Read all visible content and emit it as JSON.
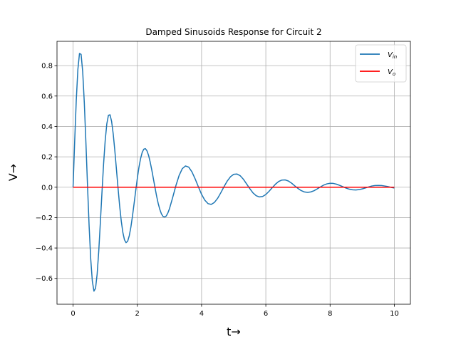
{
  "chart_data": {
    "type": "line",
    "title": "Damped Sinusoids Response for Circuit 2",
    "xlabel": "t→",
    "ylabel": "V→",
    "xlim": [
      -0.5,
      10.5
    ],
    "ylim": [
      -0.77,
      0.96
    ],
    "xticks": [
      0,
      2,
      4,
      6,
      8,
      10
    ],
    "yticks": [
      -0.6,
      -0.4,
      -0.2,
      0.0,
      0.2,
      0.4,
      0.6,
      0.8
    ],
    "xtick_labels": [
      "0",
      "2",
      "4",
      "6",
      "8",
      "10"
    ],
    "ytick_labels": [
      "−0.6",
      "−0.4",
      "−0.2",
      "0.0",
      "0.2",
      "0.4",
      "0.6",
      "0.8"
    ],
    "grid": true,
    "legend_position": "top-right",
    "series": [
      {
        "name": "V_in",
        "legend_main": "V",
        "legend_sub": "in",
        "color": "#1f77b4",
        "x": [
          0,
          0.05,
          0.1,
          0.15,
          0.2,
          0.25,
          0.3,
          0.35,
          0.4,
          0.45,
          0.5,
          0.55,
          0.6,
          0.65,
          0.7,
          0.75,
          0.8,
          0.85,
          0.9,
          0.95,
          1.0,
          1.05,
          1.1,
          1.15,
          1.2,
          1.25,
          1.3,
          1.35,
          1.4,
          1.45,
          1.5,
          1.55,
          1.6,
          1.65,
          1.7,
          1.75,
          1.8,
          1.85,
          1.9,
          1.95,
          2.0,
          2.05,
          2.1,
          2.15,
          2.2,
          2.25,
          2.3,
          2.35,
          2.4,
          2.45,
          2.5,
          2.55,
          2.6,
          2.65,
          2.7,
          2.75,
          2.8,
          2.85,
          2.9,
          2.95,
          3.0,
          3.1,
          3.2,
          3.3,
          3.4,
          3.5,
          3.6,
          3.7,
          3.8,
          3.9,
          4.0,
          4.1,
          4.2,
          4.3,
          4.4,
          4.5,
          4.6,
          4.7,
          4.8,
          4.9,
          5.0,
          5.1,
          5.2,
          5.3,
          5.4,
          5.5,
          5.6,
          5.7,
          5.8,
          5.9,
          6.0,
          6.1,
          6.2,
          6.3,
          6.4,
          6.5,
          6.6,
          6.7,
          6.8,
          6.9,
          7.0,
          7.1,
          7.2,
          7.3,
          7.4,
          7.5,
          7.6,
          7.7,
          7.8,
          7.9,
          8.0,
          8.1,
          8.2,
          8.3,
          8.4,
          8.5,
          8.6,
          8.7,
          8.8,
          8.9,
          9.0,
          9.1,
          9.2,
          9.3,
          9.4,
          9.5,
          9.6,
          9.7,
          9.8,
          9.9,
          10.0
        ],
        "y": [
          0.0,
          0.301,
          0.573,
          0.776,
          0.88,
          0.874,
          0.76,
          0.556,
          0.293,
          0.01,
          -0.257,
          -0.474,
          -0.619,
          -0.684,
          -0.665,
          -0.571,
          -0.419,
          -0.23,
          -0.033,
          0.153,
          0.307,
          0.416,
          0.473,
          0.477,
          0.433,
          0.35,
          0.241,
          0.118,
          -0.006,
          -0.123,
          -0.222,
          -0.298,
          -0.346,
          -0.365,
          -0.355,
          -0.319,
          -0.262,
          -0.189,
          -0.107,
          -0.023,
          0.058,
          0.13,
          0.187,
          0.228,
          0.25,
          0.254,
          0.24,
          0.21,
          0.166,
          0.114,
          0.056,
          -0.002,
          -0.058,
          -0.107,
          -0.146,
          -0.175,
          -0.192,
          -0.196,
          -0.189,
          -0.17,
          -0.142,
          -0.068,
          0.01,
          0.077,
          0.122,
          0.14,
          0.132,
          0.101,
          0.055,
          0.003,
          -0.047,
          -0.085,
          -0.108,
          -0.113,
          -0.1,
          -0.073,
          -0.036,
          0.004,
          0.041,
          0.069,
          0.085,
          0.087,
          0.076,
          0.053,
          0.022,
          -0.009,
          -0.037,
          -0.056,
          -0.064,
          -0.061,
          -0.048,
          -0.027,
          -0.003,
          0.02,
          0.038,
          0.047,
          0.048,
          0.041,
          0.027,
          0.009,
          -0.008,
          -0.022,
          -0.031,
          -0.034,
          -0.031,
          -0.023,
          -0.011,
          0.002,
          0.014,
          0.022,
          0.026,
          0.025,
          0.02,
          0.012,
          0.003,
          -0.006,
          -0.013,
          -0.017,
          -0.018,
          -0.016,
          -0.011,
          -0.005,
          0.002,
          0.008,
          0.011,
          0.012,
          0.011,
          0.008,
          0.004,
          -0.001,
          -0.005
        ]
      },
      {
        "name": "V_o",
        "legend_main": "V",
        "legend_sub": "o",
        "color": "#ff0000",
        "x": [
          0,
          10
        ],
        "y": [
          0,
          0
        ]
      }
    ]
  }
}
